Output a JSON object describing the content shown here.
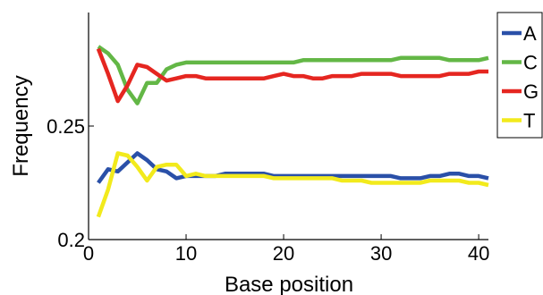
{
  "chart_data": {
    "type": "line",
    "title": "",
    "xlabel": "Base position",
    "ylabel": "Frequency",
    "xlim": [
      0,
      41
    ],
    "ylim": [
      0.2,
      0.3
    ],
    "xticks": [
      0,
      10,
      20,
      30,
      40
    ],
    "xtick_labels": [
      "0",
      "10",
      "20",
      "30",
      "40"
    ],
    "yticks": [
      0.2,
      0.25
    ],
    "ytick_labels": [
      "0.2",
      "0.25"
    ],
    "grid": false,
    "legend": "right",
    "x": [
      1,
      2,
      3,
      4,
      5,
      6,
      7,
      8,
      9,
      10,
      11,
      12,
      13,
      14,
      15,
      16,
      17,
      18,
      19,
      20,
      21,
      22,
      23,
      24,
      25,
      26,
      27,
      28,
      29,
      30,
      31,
      32,
      33,
      34,
      35,
      36,
      37,
      38,
      39,
      40,
      41
    ],
    "series": [
      {
        "name": "A",
        "color": "#2a50a8",
        "values": [
          0.225,
          0.231,
          0.23,
          0.234,
          0.238,
          0.235,
          0.231,
          0.23,
          0.227,
          0.228,
          0.228,
          0.228,
          0.228,
          0.229,
          0.229,
          0.229,
          0.229,
          0.229,
          0.228,
          0.228,
          0.228,
          0.228,
          0.228,
          0.228,
          0.228,
          0.228,
          0.228,
          0.228,
          0.228,
          0.228,
          0.228,
          0.227,
          0.227,
          0.227,
          0.228,
          0.228,
          0.229,
          0.229,
          0.228,
          0.228,
          0.227
        ]
      },
      {
        "name": "C",
        "color": "#63b746",
        "values": [
          0.285,
          0.282,
          0.277,
          0.266,
          0.26,
          0.269,
          0.269,
          0.275,
          0.277,
          0.278,
          0.278,
          0.278,
          0.278,
          0.278,
          0.278,
          0.278,
          0.278,
          0.278,
          0.278,
          0.278,
          0.278,
          0.279,
          0.279,
          0.279,
          0.279,
          0.279,
          0.279,
          0.279,
          0.279,
          0.279,
          0.279,
          0.28,
          0.28,
          0.28,
          0.28,
          0.28,
          0.279,
          0.279,
          0.279,
          0.279,
          0.28
        ]
      },
      {
        "name": "G",
        "color": "#e52620",
        "values": [
          0.284,
          0.273,
          0.261,
          0.268,
          0.277,
          0.276,
          0.273,
          0.27,
          0.271,
          0.272,
          0.272,
          0.271,
          0.271,
          0.271,
          0.271,
          0.271,
          0.271,
          0.271,
          0.272,
          0.273,
          0.272,
          0.272,
          0.271,
          0.271,
          0.272,
          0.272,
          0.272,
          0.273,
          0.273,
          0.273,
          0.273,
          0.272,
          0.272,
          0.272,
          0.272,
          0.272,
          0.273,
          0.273,
          0.273,
          0.274,
          0.274
        ]
      },
      {
        "name": "T",
        "color": "#f2ea1c",
        "values": [
          0.21,
          0.222,
          0.238,
          0.237,
          0.232,
          0.226,
          0.232,
          0.233,
          0.233,
          0.228,
          0.229,
          0.228,
          0.228,
          0.228,
          0.228,
          0.228,
          0.228,
          0.228,
          0.227,
          0.227,
          0.227,
          0.227,
          0.227,
          0.227,
          0.227,
          0.226,
          0.226,
          0.226,
          0.225,
          0.225,
          0.225,
          0.225,
          0.225,
          0.225,
          0.226,
          0.226,
          0.226,
          0.226,
          0.225,
          0.225,
          0.224
        ]
      }
    ]
  }
}
